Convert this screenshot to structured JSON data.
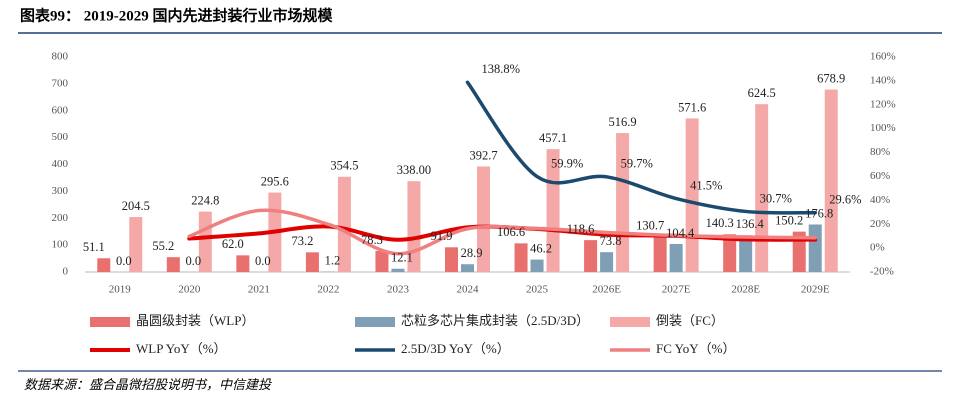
{
  "chart_data": {
    "type": "bar",
    "title": "图表99：  2019-2029 国内先进封装行业市场规模",
    "source": "数据来源：盛合晶微招股说明书，中信建投",
    "categories": [
      "2019",
      "2020",
      "2021",
      "2022",
      "2023",
      "2024",
      "2025",
      "2026E",
      "2027E",
      "2028E",
      "2029E"
    ],
    "ylim": [
      0,
      800
    ],
    "yticks": [
      0,
      100,
      200,
      300,
      400,
      500,
      600,
      700,
      800
    ],
    "y2lim": [
      -20,
      160
    ],
    "y2ticks": [
      {
        "value": -20,
        "label": "-20%"
      },
      {
        "value": 0,
        "label": "0%"
      },
      {
        "value": 20,
        "label": "20%"
      },
      {
        "value": 40,
        "label": "40%"
      },
      {
        "value": 60,
        "label": "60%"
      },
      {
        "value": 80,
        "label": "80%"
      },
      {
        "value": 100,
        "label": "100%"
      },
      {
        "value": 120,
        "label": "120%"
      },
      {
        "value": 140,
        "label": "140%"
      },
      {
        "value": 160,
        "label": "160%"
      }
    ],
    "series": [
      {
        "name": "晶圆级封装（WLP）",
        "type": "bar",
        "color": "#e8706e",
        "values": [
          51.1,
          55.2,
          62.0,
          73.2,
          78.3,
          91.9,
          106.6,
          118.6,
          130.7,
          140.3,
          150.2
        ],
        "value_labels": [
          "51.1",
          "55.2",
          "62.0",
          "73.2",
          "78.3",
          "91.9",
          "106.6",
          "118.6",
          "130.7",
          "140.3",
          "150.2"
        ]
      },
      {
        "name": "芯粒多芯片集成封装（2.5D/3D）",
        "type": "bar",
        "color": "#7f9fb5",
        "values": [
          0,
          0,
          0,
          1.2,
          12.1,
          28.9,
          46.2,
          73.8,
          104.4,
          136.4,
          176.8
        ],
        "value_labels": [
          "0.0",
          "0.0",
          "0.0",
          "1.2",
          "12.1",
          "28.9",
          "46.2",
          "73.8",
          "104.4",
          "136.4",
          "176.8"
        ]
      },
      {
        "name": "倒装（FC）",
        "type": "bar",
        "color": "#f4a9a8",
        "values": [
          204.5,
          224.8,
          295.6,
          354.5,
          338,
          392.7,
          457.1,
          516.9,
          571.6,
          624.5,
          678.9
        ],
        "value_labels": [
          "204.5",
          "224.8",
          "295.6",
          "354.5",
          "338.00",
          "392.7",
          "457.1",
          "516.9",
          "571.6",
          "624.5",
          "678.9"
        ]
      },
      {
        "name": "WLP YoY（%）",
        "type": "line",
        "axis": "y2",
        "color": "#e00000",
        "width": 4,
        "values": [
          null,
          8.0,
          12.3,
          18.1,
          7.0,
          17.4,
          16.0,
          11.3,
          10.2,
          7.3,
          7.1
        ]
      },
      {
        "name": "2.5D/3D YoY（%）",
        "type": "line",
        "axis": "y2",
        "color": "#1b4a6e",
        "width": 3.5,
        "values": [
          null,
          null,
          null,
          null,
          null,
          138.8,
          59.9,
          59.7,
          41.5,
          30.7,
          29.6
        ],
        "value_labels": [
          null,
          null,
          null,
          null,
          null,
          "138.8%",
          "59.9%",
          "59.7%",
          "41.5%",
          "30.7%",
          "29.6%"
        ]
      },
      {
        "name": "FC YoY（%）",
        "type": "line",
        "axis": "y2",
        "color": "#f08080",
        "width": 3.5,
        "values": [
          null,
          9.9,
          31.5,
          19.9,
          -4.7,
          16.2,
          16.4,
          13.1,
          10.6,
          9.3,
          8.7
        ]
      }
    ]
  }
}
